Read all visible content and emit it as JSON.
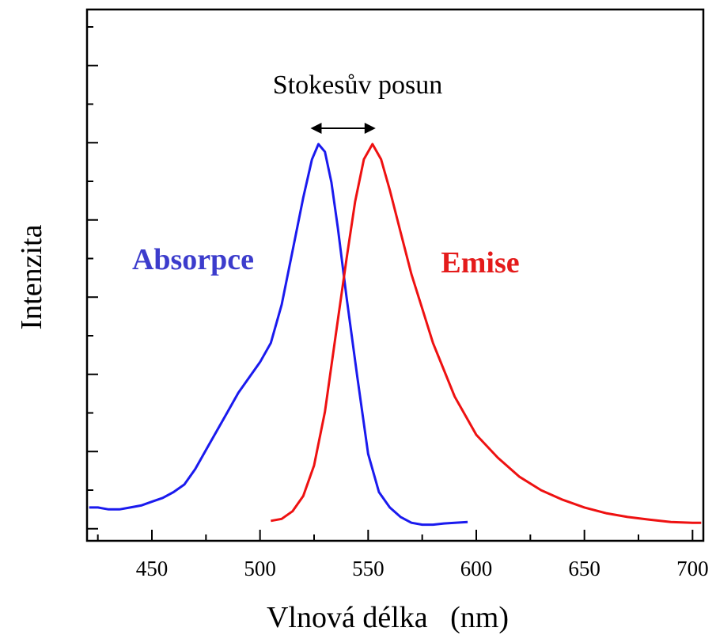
{
  "chart_data": {
    "type": "line",
    "xlabel": "Vlnová délka   (nm)",
    "ylabel": "Intenzita",
    "xlim": [
      420,
      705
    ],
    "ylim": [
      0,
      1.05
    ],
    "xticks": [
      450,
      500,
      550,
      600,
      650,
      700
    ],
    "xtick_labels": [
      "450",
      "500",
      "550",
      "600",
      "650",
      "700"
    ],
    "y_tick_labels_shown": false,
    "grid": false,
    "annotation": {
      "text": "Stokesův posun",
      "arrow_from_x": 527,
      "arrow_to_x": 552
    },
    "series": [
      {
        "name": "Absorpce",
        "color": "#1a1aee",
        "points": [
          [
            421,
            0.05
          ],
          [
            425,
            0.05
          ],
          [
            430,
            0.045
          ],
          [
            435,
            0.045
          ],
          [
            440,
            0.05
          ],
          [
            445,
            0.055
          ],
          [
            450,
            0.065
          ],
          [
            455,
            0.075
          ],
          [
            460,
            0.09
          ],
          [
            465,
            0.11
          ],
          [
            470,
            0.15
          ],
          [
            475,
            0.2
          ],
          [
            480,
            0.25
          ],
          [
            485,
            0.3
          ],
          [
            490,
            0.35
          ],
          [
            495,
            0.39
          ],
          [
            500,
            0.43
          ],
          [
            505,
            0.48
          ],
          [
            510,
            0.58
          ],
          [
            515,
            0.72
          ],
          [
            520,
            0.86
          ],
          [
            524,
            0.96
          ],
          [
            527,
            1.0
          ],
          [
            530,
            0.98
          ],
          [
            533,
            0.9
          ],
          [
            536,
            0.78
          ],
          [
            540,
            0.6
          ],
          [
            545,
            0.39
          ],
          [
            550,
            0.19
          ],
          [
            555,
            0.09
          ],
          [
            560,
            0.05
          ],
          [
            565,
            0.025
          ],
          [
            570,
            0.01
          ],
          [
            575,
            0.005
          ],
          [
            580,
            0.005
          ],
          [
            585,
            0.008
          ],
          [
            590,
            0.01
          ],
          [
            596,
            0.012
          ]
        ]
      },
      {
        "name": "Emise",
        "color": "#ee1111",
        "points": [
          [
            505,
            0.015
          ],
          [
            510,
            0.02
          ],
          [
            515,
            0.04
          ],
          [
            520,
            0.08
          ],
          [
            525,
            0.16
          ],
          [
            530,
            0.3
          ],
          [
            535,
            0.5
          ],
          [
            540,
            0.7
          ],
          [
            544,
            0.85
          ],
          [
            548,
            0.96
          ],
          [
            552,
            1.0
          ],
          [
            556,
            0.96
          ],
          [
            560,
            0.88
          ],
          [
            565,
            0.77
          ],
          [
            570,
            0.66
          ],
          [
            575,
            0.57
          ],
          [
            580,
            0.48
          ],
          [
            585,
            0.41
          ],
          [
            590,
            0.34
          ],
          [
            595,
            0.29
          ],
          [
            600,
            0.24
          ],
          [
            610,
            0.18
          ],
          [
            620,
            0.13
          ],
          [
            630,
            0.095
          ],
          [
            640,
            0.07
          ],
          [
            650,
            0.05
          ],
          [
            660,
            0.035
          ],
          [
            670,
            0.025
          ],
          [
            680,
            0.018
          ],
          [
            690,
            0.012
          ],
          [
            700,
            0.01
          ],
          [
            704,
            0.01
          ]
        ]
      }
    ]
  }
}
